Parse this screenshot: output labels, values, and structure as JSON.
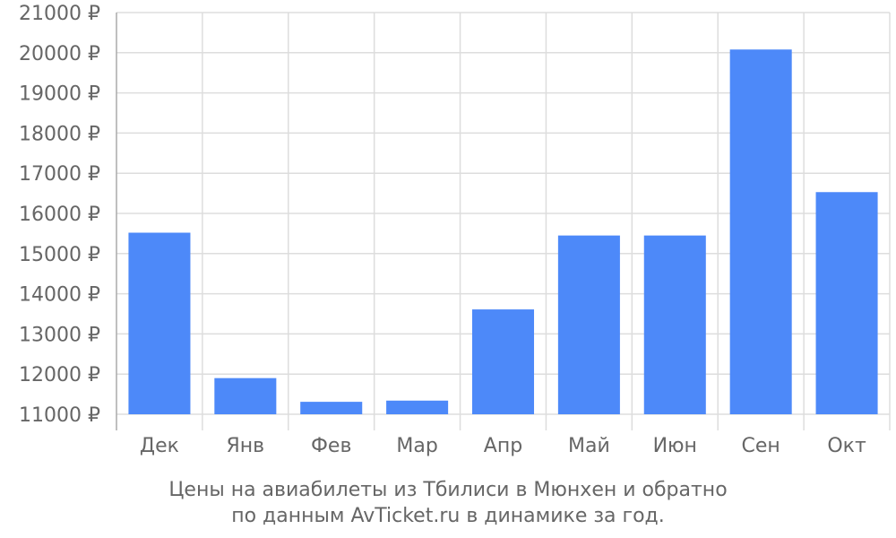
{
  "chart_data": {
    "type": "bar",
    "categories": [
      "Дек",
      "Янв",
      "Фев",
      "Мар",
      "Апр",
      "Май",
      "Июн",
      "Сен",
      "Окт"
    ],
    "series": [
      {
        "values": [
          15520,
          11900,
          11310,
          11340,
          13610,
          15450,
          15450,
          20080,
          16530
        ]
      }
    ],
    "ylim": [
      11000,
      21000
    ],
    "y_ticks": [
      11000,
      12000,
      13000,
      14000,
      15000,
      16000,
      17000,
      18000,
      19000,
      20000,
      21000
    ],
    "y_tick_suffix": " ₽",
    "grid": true,
    "legend": "none",
    "bar_color": "#4d89f9",
    "grid_color": "#dddddd",
    "axis_color": "#aaaaaa",
    "text_color": "#666666"
  },
  "caption": {
    "line1": "Цены на авиабилеты из Тбилиси в Мюнхен и обратно",
    "line2": "по данным AvTicket.ru в динамике за год."
  }
}
